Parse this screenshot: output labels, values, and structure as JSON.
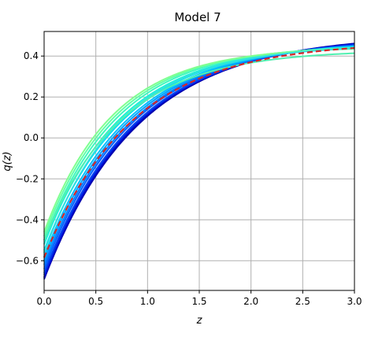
{
  "chart_data": {
    "type": "line",
    "title": "Model 7",
    "xlabel": "z",
    "ylabel": "q(z)",
    "xlim": [
      0.0,
      3.0
    ],
    "ylim": [
      -0.745,
      0.52
    ],
    "grid": true,
    "x_ticks": [
      0.0,
      0.5,
      1.0,
      1.5,
      2.0,
      2.5,
      3.0
    ],
    "x_tick_labels": [
      "0.0",
      "0.5",
      "1.0",
      "1.5",
      "2.0",
      "2.5",
      "3.0"
    ],
    "y_ticks": [
      -0.6,
      -0.4,
      -0.2,
      0.0,
      0.2,
      0.4
    ],
    "y_tick_labels": [
      "−0.6",
      "−0.4",
      "−0.2",
      "0.0",
      "0.2",
      "0.4"
    ],
    "series_model": "q(z) = a + (q0 - a) * exp(-k z)",
    "series": [
      {
        "color": "#0000a8",
        "q0": -0.69,
        "a": 0.505,
        "k": 1.1
      },
      {
        "color": "#0000c0",
        "q0": -0.685,
        "a": 0.5,
        "k": 1.12
      },
      {
        "color": "#0010d0",
        "q0": -0.68,
        "a": 0.495,
        "k": 1.14
      },
      {
        "color": "#0020e0",
        "q0": -0.67,
        "a": 0.495,
        "k": 1.13
      },
      {
        "color": "#0040f0",
        "q0": -0.66,
        "a": 0.49,
        "k": 1.15
      },
      {
        "color": "#0060ff",
        "q0": -0.64,
        "a": 0.485,
        "k": 1.18
      },
      {
        "color": "#0080ff",
        "q0": -0.62,
        "a": 0.48,
        "k": 1.2
      },
      {
        "color": "#00a0ff",
        "q0": -0.6,
        "a": 0.475,
        "k": 1.23
      },
      {
        "color": "#00c0ff",
        "q0": -0.58,
        "a": 0.47,
        "k": 1.26
      },
      {
        "color": "#00e0f0",
        "q0": -0.55,
        "a": 0.465,
        "k": 1.3
      },
      {
        "color": "#20f0d8",
        "q0": -0.52,
        "a": 0.46,
        "k": 1.34
      },
      {
        "color": "#40f8c0",
        "q0": -0.5,
        "a": 0.455,
        "k": 1.4
      },
      {
        "color": "#60ffa8",
        "q0": -0.48,
        "a": 0.45,
        "k": 1.45
      },
      {
        "color": "#80ff90",
        "q0": -0.46,
        "a": 0.445,
        "k": 1.5
      },
      {
        "color": "#30e0e0",
        "q0": -0.56,
        "a": 0.455,
        "k": 1.36
      },
      {
        "color": "#50f0b0",
        "q0": -0.5,
        "a": 0.43,
        "k": 1.35
      }
    ],
    "fiducial": {
      "color": "#d62728",
      "style": "dashed",
      "q0": -0.585,
      "a": 0.47,
      "k": 1.18
    }
  }
}
